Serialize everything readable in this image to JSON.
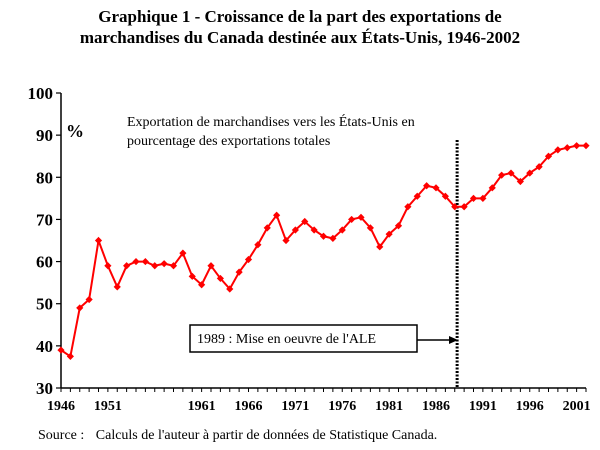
{
  "chart_data": {
    "type": "line",
    "title": "Graphique 1 - Croissance de la part des exportations de marchandises du Canada destinée aux États-Unis, 1946-2002",
    "title_lines": [
      "Graphique 1 - Croissance de la part des exportations de",
      "marchandises du Canada destinée aux États-Unis, 1946-2002"
    ],
    "ylabel": "%",
    "xlabel": "",
    "ylim": [
      30,
      100
    ],
    "xlim": [
      1946,
      2002
    ],
    "yticks": [
      30,
      40,
      50,
      60,
      70,
      80,
      90,
      100
    ],
    "xticks": [
      1946,
      1951,
      1961,
      1966,
      1971,
      1976,
      1981,
      1986,
      1991,
      1996,
      2001
    ],
    "series_label_lines": [
      "Exportation de marchandises vers les États-Unis en",
      "pourcentage des exportations totales"
    ],
    "color": "#ff0000",
    "series": [
      {
        "name": "Exportation de marchandises vers les États-Unis en pourcentage des exportations totales",
        "x": [
          1946,
          1947,
          1948,
          1949,
          1950,
          1951,
          1952,
          1953,
          1954,
          1955,
          1956,
          1957,
          1958,
          1959,
          1960,
          1961,
          1962,
          1963,
          1964,
          1965,
          1966,
          1967,
          1968,
          1969,
          1970,
          1971,
          1972,
          1973,
          1974,
          1975,
          1976,
          1977,
          1978,
          1979,
          1980,
          1981,
          1982,
          1983,
          1984,
          1985,
          1986,
          1987,
          1988,
          1989,
          1990,
          1991,
          1992,
          1993,
          1994,
          1995,
          1996,
          1997,
          1998,
          1999,
          2000,
          2001,
          2002
        ],
        "values": [
          39,
          37.5,
          49,
          51,
          65,
          59,
          54,
          59,
          60,
          60,
          59,
          59.5,
          59,
          62,
          56.5,
          54.5,
          59,
          56,
          53.5,
          57.5,
          60.5,
          64,
          68,
          71,
          65,
          67.5,
          69.5,
          67.5,
          66,
          65.5,
          67.5,
          70,
          70.5,
          68,
          63.5,
          66.5,
          68.5,
          73,
          75.5,
          78,
          77.5,
          75.5,
          73,
          73,
          75,
          75,
          77.5,
          80.5,
          81,
          79,
          81,
          82.5,
          85,
          86.5,
          87,
          87.5,
          87.5
        ]
      }
    ],
    "annotation": {
      "label": "1989 : Mise en oeuvre de l'ALE",
      "x": 1989
    }
  },
  "source_label": "Source :",
  "source_text": "Calculs de l'auteur à partir de données de Statistique Canada."
}
